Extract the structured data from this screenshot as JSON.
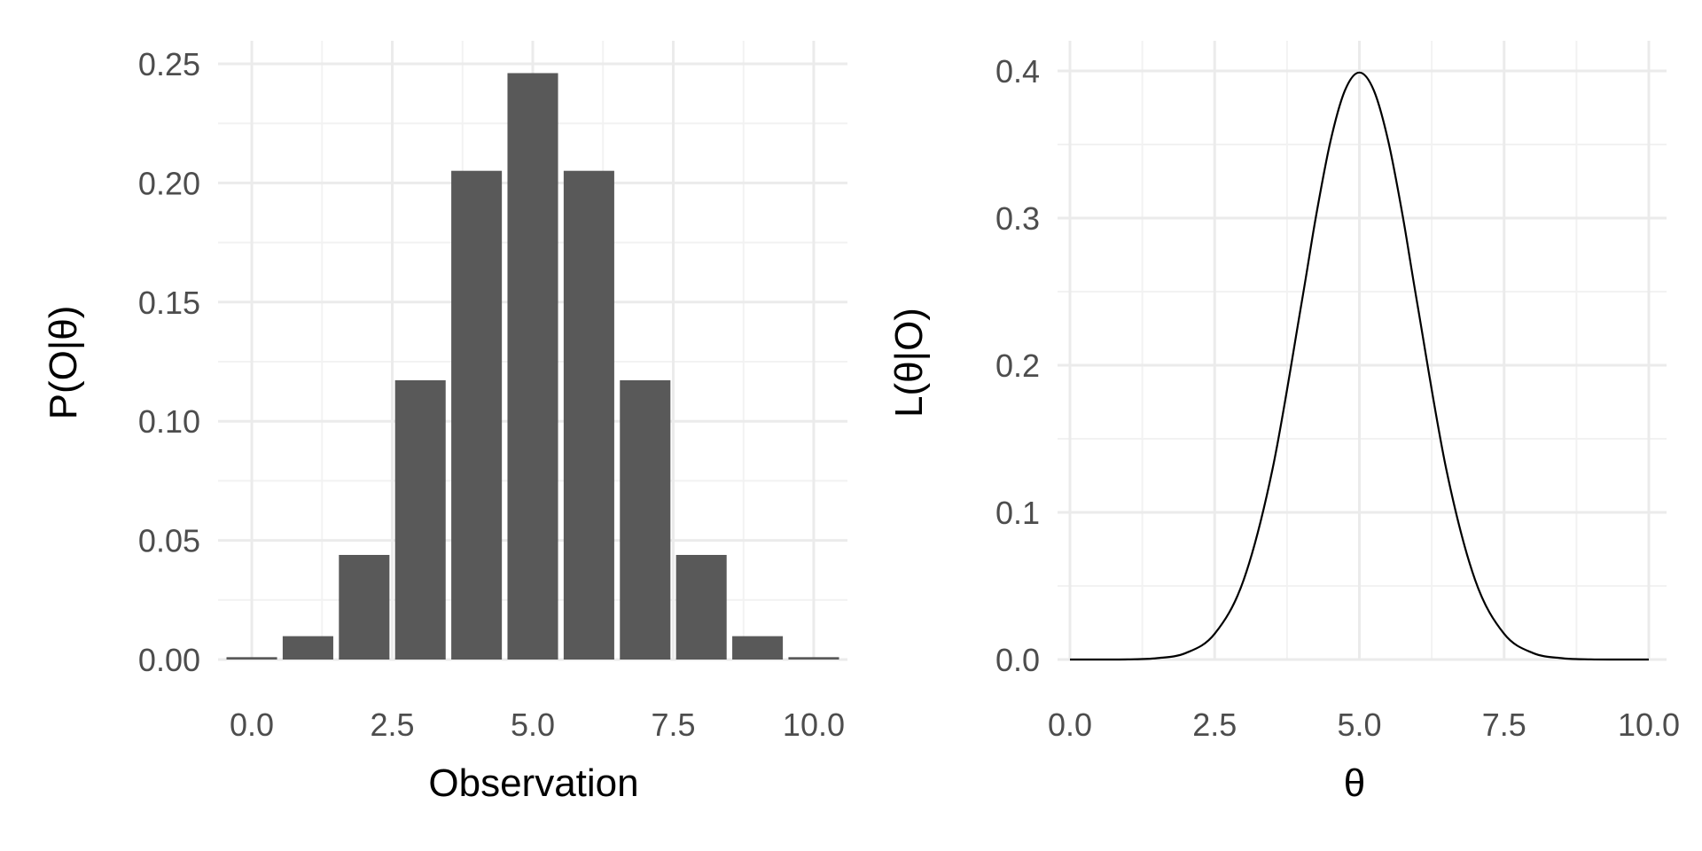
{
  "chart_data": [
    {
      "type": "bar",
      "xlabel": "Observation",
      "ylabel": "P(O|θ)",
      "xlim": [
        -0.6,
        10.6
      ],
      "ylim": [
        0,
        0.25
      ],
      "xticks": [
        0.0,
        2.5,
        5.0,
        7.5,
        10.0
      ],
      "xtick_labels": [
        "0.0",
        "2.5",
        "5.0",
        "7.5",
        "10.0"
      ],
      "yticks": [
        0.0,
        0.05,
        0.1,
        0.15,
        0.2,
        0.25
      ],
      "ytick_labels": [
        "0.00",
        "0.05",
        "0.10",
        "0.15",
        "0.20",
        "0.25"
      ],
      "grid": true,
      "bar_color": "#595959",
      "x": [
        0,
        1,
        2,
        3,
        4,
        5,
        6,
        7,
        8,
        9,
        10
      ],
      "values": [
        0.001,
        0.0098,
        0.0439,
        0.1172,
        0.2051,
        0.2461,
        0.2051,
        0.1172,
        0.0439,
        0.0098,
        0.001
      ]
    },
    {
      "type": "line",
      "xlabel": "θ",
      "ylabel": "L(θ|O)",
      "xlim": [
        0,
        10
      ],
      "ylim": [
        0,
        0.4
      ],
      "xticks": [
        0.0,
        2.5,
        5.0,
        7.5,
        10.0
      ],
      "xtick_labels": [
        "0.0",
        "2.5",
        "5.0",
        "7.5",
        "10.0"
      ],
      "yticks": [
        0.0,
        0.1,
        0.2,
        0.3,
        0.4
      ],
      "ytick_labels": [
        "0.0",
        "0.1",
        "0.2",
        "0.3",
        "0.4"
      ],
      "grid": true,
      "line_color": "#000000",
      "x": [
        0,
        0.5,
        1.0,
        1.5,
        2.0,
        2.5,
        3.0,
        3.5,
        4.0,
        4.25,
        4.5,
        4.75,
        5.0,
        5.25,
        5.5,
        5.75,
        6.0,
        6.5,
        7.0,
        7.5,
        8.0,
        8.5,
        9.0,
        9.5,
        10.0
      ],
      "y": [
        0.0,
        0.0,
        0.0001,
        0.0009,
        0.0044,
        0.0175,
        0.054,
        0.1295,
        0.242,
        0.3011,
        0.3521,
        0.3867,
        0.3989,
        0.3867,
        0.3521,
        0.3011,
        0.242,
        0.1295,
        0.054,
        0.0175,
        0.0044,
        0.0009,
        0.0001,
        0.0,
        0.0
      ]
    }
  ]
}
